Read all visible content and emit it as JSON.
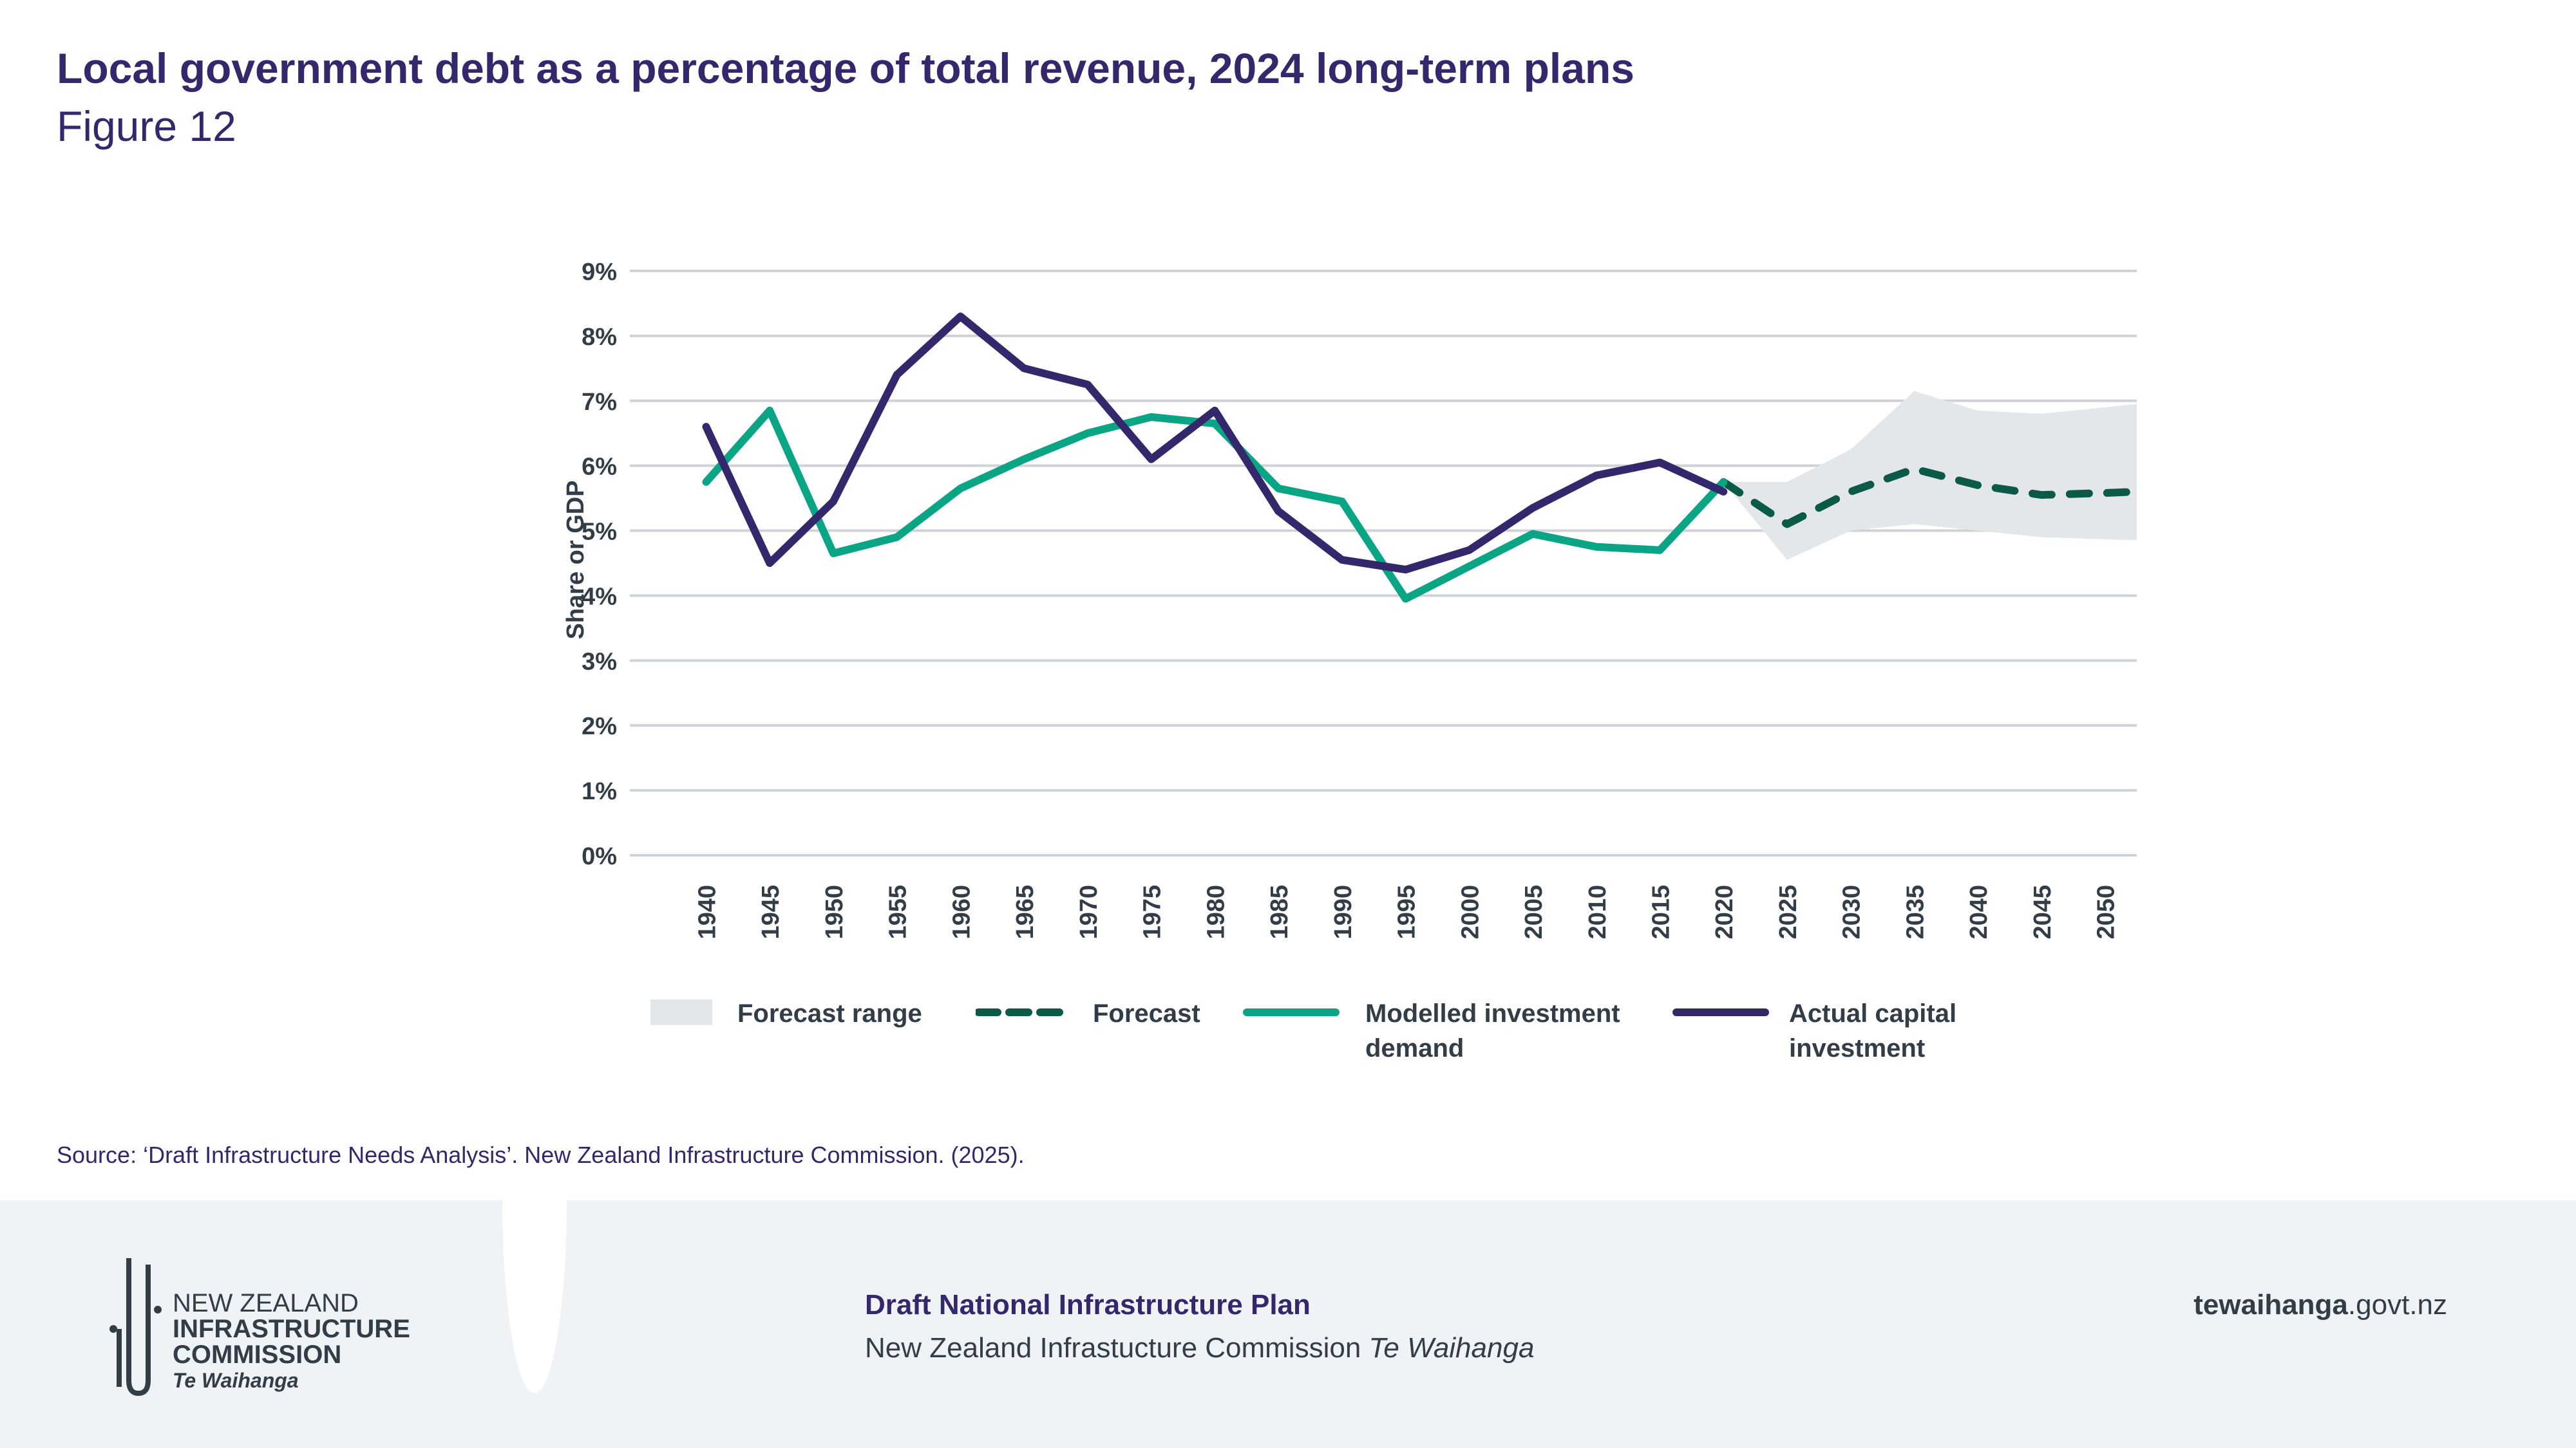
{
  "title": "Local government debt as a percentage of total revenue, 2024 long-term plans",
  "subtitle": "Figure 12",
  "source": "Source: ‘Draft Infrastructure Needs Analysis’. New Zealand Infrastructure Commission. (2025).",
  "footer": {
    "logo": {
      "line1": "NEW ZEALAND",
      "line2": "INFRASTRUCTURE",
      "line3": "COMMISSION",
      "line4": "Te Waihanga"
    },
    "plan_title": "Draft National Infrastructure Plan",
    "org": "New Zealand Infrastucture Commission",
    "org_italic": "Te Waihanga",
    "url_bold": "tewaihanga",
    "url_rest": ".govt.nz"
  },
  "chart_data": {
    "type": "line",
    "title": "Local government debt as a percentage of total revenue, 2024 long-term plans",
    "xlabel": "",
    "ylabel": "Share or GDP",
    "ylim": [
      0,
      9
    ],
    "xlim": [
      1934,
      2052.5
    ],
    "yticks": [
      "0%",
      "1%",
      "2%",
      "3%",
      "4%",
      "5%",
      "6%",
      "7%",
      "8%",
      "9%"
    ],
    "xticks": [
      "1940",
      "1945",
      "1950",
      "1955",
      "1960",
      "1965",
      "1970",
      "1975",
      "1980",
      "1985",
      "1990",
      "1995",
      "2000",
      "2005",
      "2010",
      "2015",
      "2020",
      "2025",
      "2030",
      "2035",
      "2040",
      "2045",
      "2050"
    ],
    "grid": "horizontal",
    "legend_position": "bottom",
    "colors": {
      "range": "#e3e7ea",
      "forecast": "#0b5a48",
      "modelled": "#0aa585",
      "actual": "#35276b"
    },
    "series": [
      {
        "name": "Actual capital investment",
        "x": [
          1940,
          1945,
          1950,
          1955,
          1960,
          1965,
          1970,
          1975,
          1980,
          1985,
          1990,
          1995,
          2000,
          2005,
          2010,
          2015,
          2020
        ],
        "values": [
          6.6,
          4.5,
          5.45,
          7.4,
          8.3,
          7.5,
          7.25,
          6.1,
          6.85,
          5.3,
          4.55,
          4.4,
          4.7,
          5.35,
          5.85,
          6.05,
          5.6
        ]
      },
      {
        "name": "Modelled investment demand",
        "x": [
          1940,
          1945,
          1950,
          1955,
          1960,
          1965,
          1970,
          1975,
          1980,
          1985,
          1990,
          1995,
          2000,
          2005,
          2010,
          2015,
          2020
        ],
        "values": [
          5.75,
          6.85,
          4.65,
          4.9,
          5.65,
          6.1,
          6.5,
          6.75,
          6.65,
          5.65,
          5.45,
          3.95,
          4.45,
          4.95,
          4.75,
          4.7,
          5.75
        ]
      },
      {
        "name": "Forecast",
        "x": [
          2020,
          2025,
          2030,
          2035,
          2040,
          2045,
          2050,
          2052.5
        ],
        "values": [
          5.75,
          5.1,
          5.6,
          5.95,
          5.7,
          5.55,
          5.58,
          5.6
        ]
      },
      {
        "name": "Forecast range",
        "x": [
          2020,
          2025,
          2030,
          2035,
          2040,
          2045,
          2052.5
        ],
        "upper": [
          5.75,
          5.75,
          6.25,
          7.15,
          6.85,
          6.8,
          6.95
        ],
        "lower": [
          5.75,
          4.55,
          5.0,
          5.1,
          5.0,
          4.9,
          4.85
        ]
      }
    ],
    "legend": [
      "Forecast range",
      "Forecast",
      "Modelled investment demand",
      "Actual capital investment"
    ]
  }
}
